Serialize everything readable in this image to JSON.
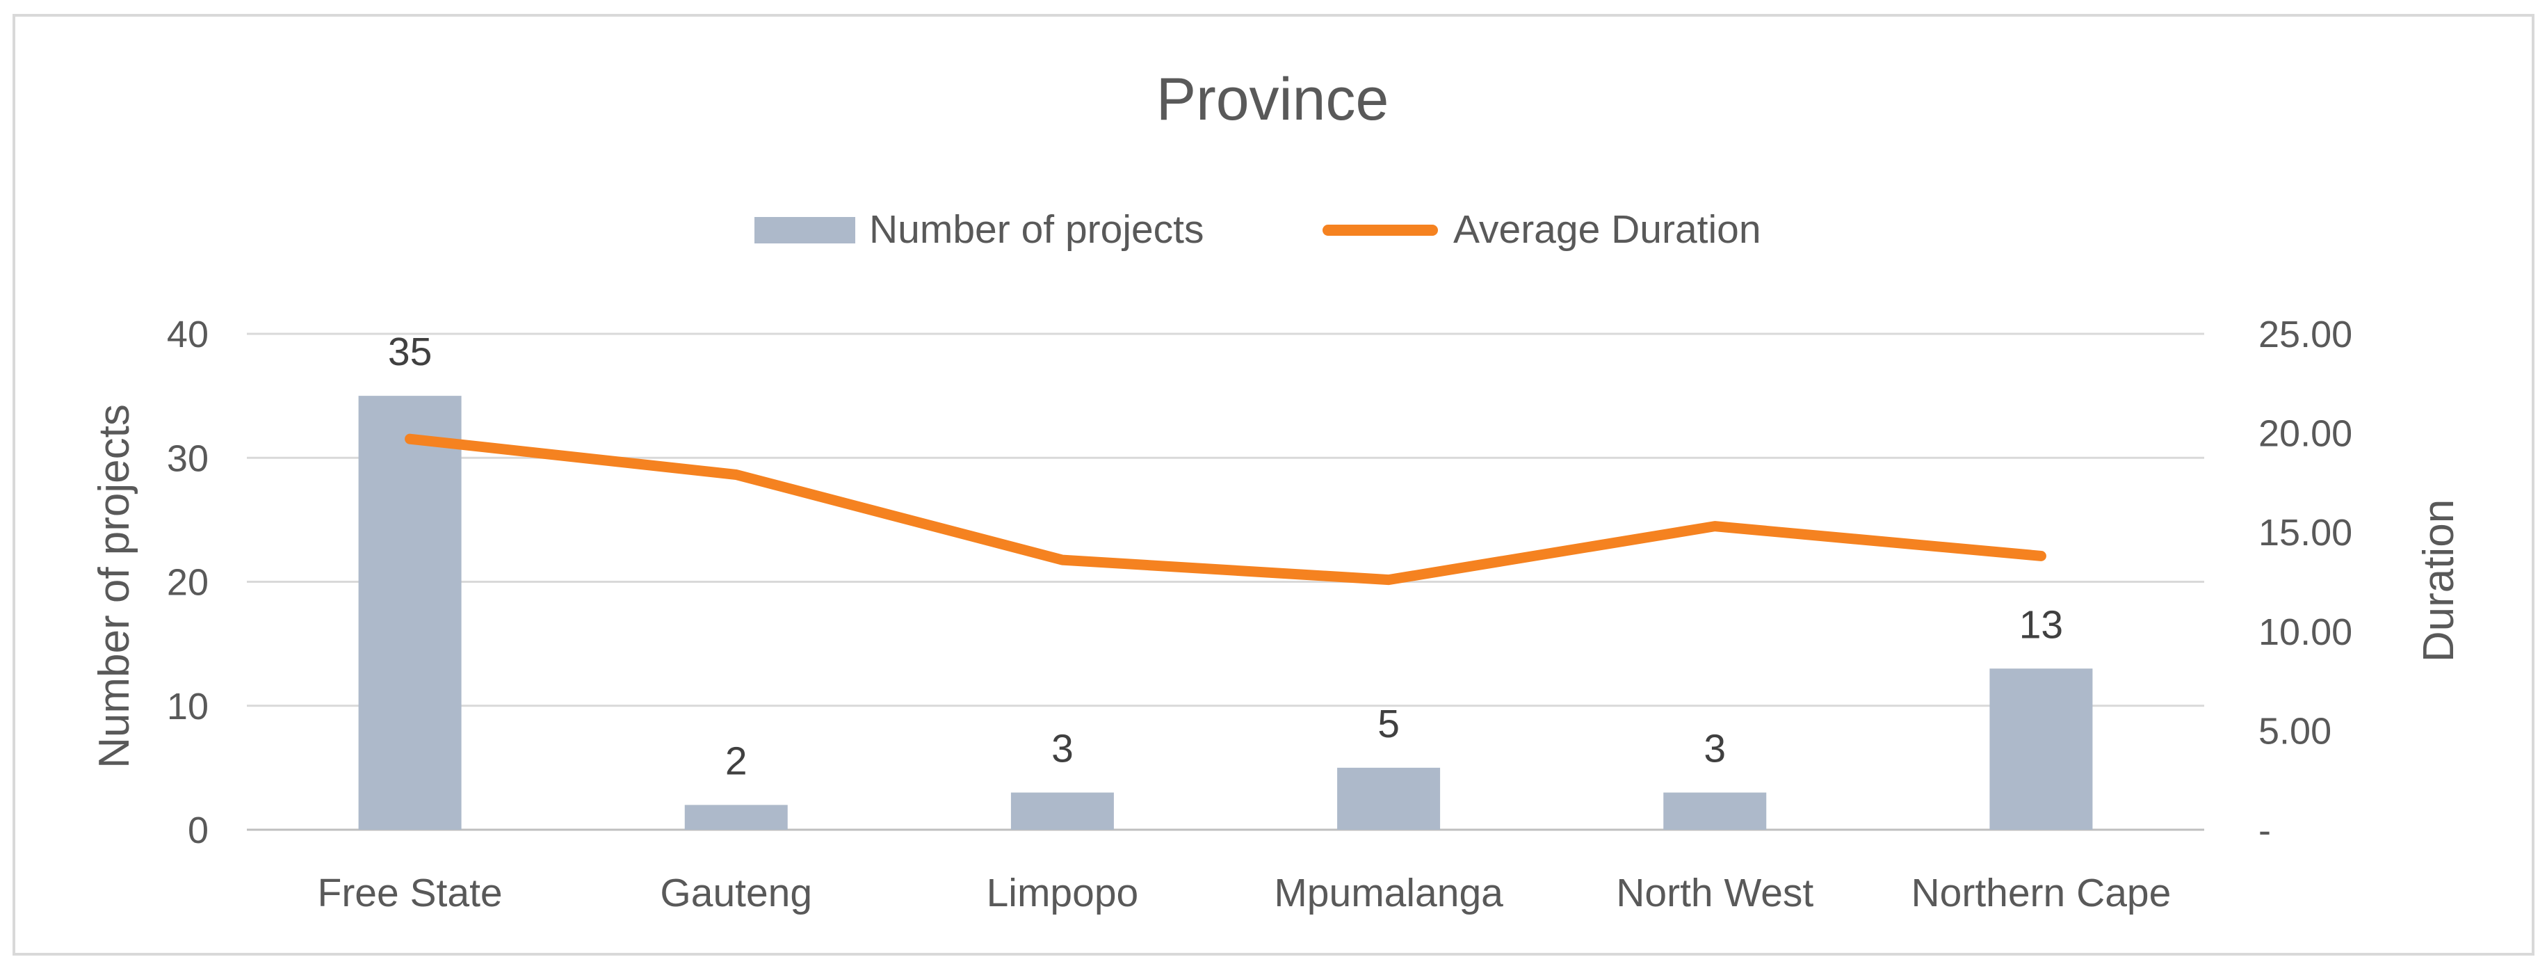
{
  "chart_data": {
    "type": "bar",
    "title": "Province",
    "categories": [
      "Free State",
      "Gauteng",
      "Limpopo",
      "Mpumalanga",
      "North West",
      "Northern Cape"
    ],
    "series": [
      {
        "name": "Number of projects",
        "type": "bar",
        "axis": "left",
        "color": "#adb9ca",
        "values": [
          35,
          2,
          3,
          5,
          3,
          13
        ],
        "data_labels": [
          "35",
          "2",
          "3",
          "5",
          "3",
          "13"
        ]
      },
      {
        "name": "Average Duration",
        "type": "line",
        "axis": "right",
        "color": "#f58220",
        "values": [
          19.7,
          17.9,
          13.6,
          12.6,
          15.3,
          13.8
        ]
      }
    ],
    "ylabel": "Number of projects",
    "ylim": [
      0,
      40
    ],
    "yticks": [
      0,
      10,
      20,
      30,
      40
    ],
    "ytick_labels": [
      "0",
      "10",
      "20",
      "30",
      "40"
    ],
    "y2label": "Duration",
    "y2lim": [
      0,
      25
    ],
    "y2ticks": [
      0,
      5,
      10,
      15,
      20,
      25
    ],
    "y2tick_labels": [
      "-",
      "5.00",
      "10.00",
      "15.00",
      "20.00",
      "25.00"
    ],
    "grid": true,
    "legend_position": "top-center"
  }
}
